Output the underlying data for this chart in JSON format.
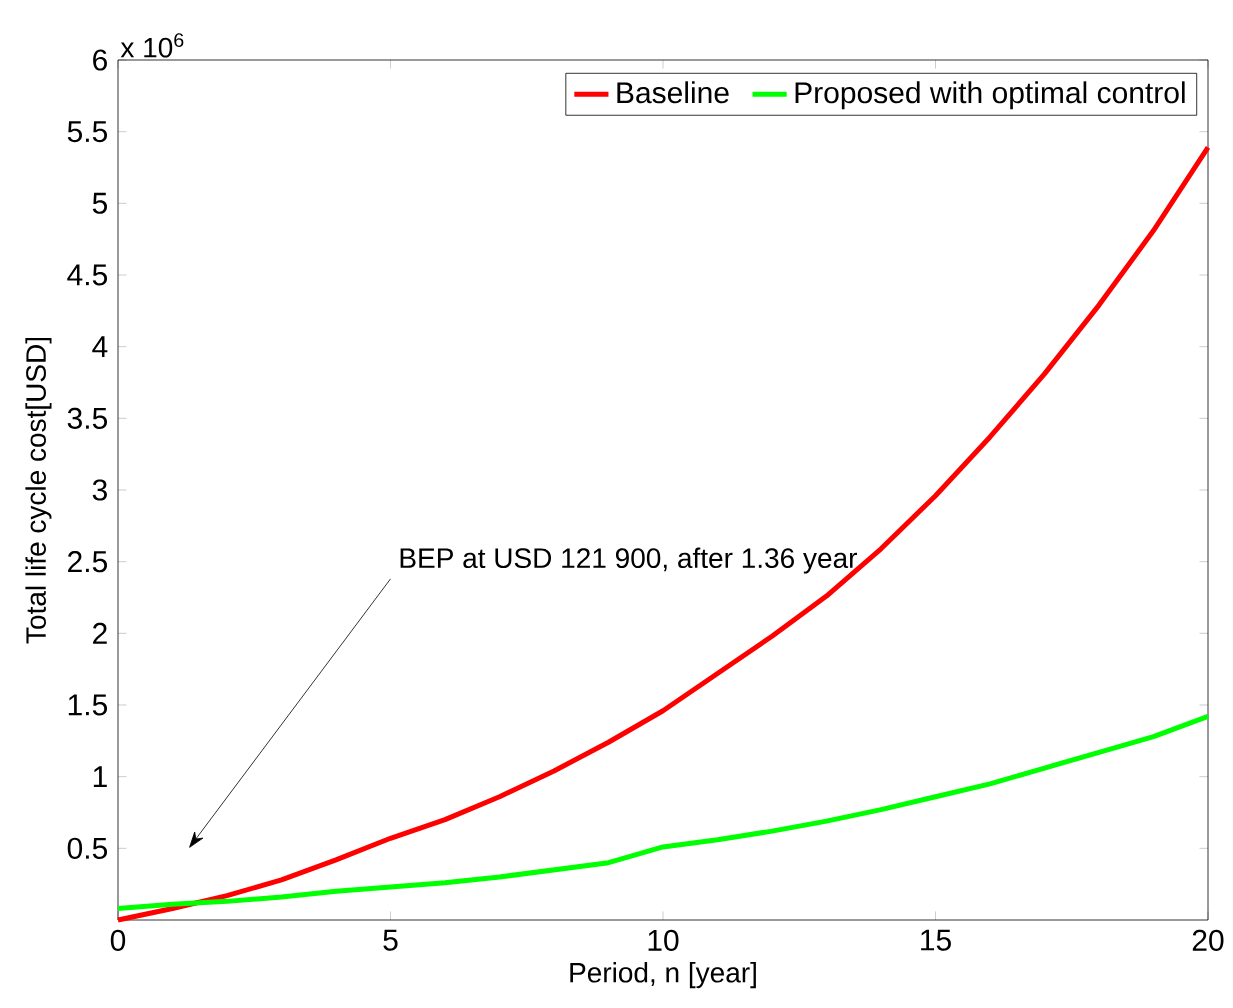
{
  "chart_data": {
    "type": "line",
    "xlabel": "Period, n [year]",
    "ylabel": "Total life cycle cost[USD]",
    "x": [
      0,
      1,
      2,
      3,
      4,
      5,
      6,
      7,
      8,
      9,
      10,
      11,
      12,
      13,
      14,
      15,
      16,
      17,
      18,
      19,
      20
    ],
    "series": [
      {
        "name": "Baseline",
        "color": "#ff0000",
        "values": [
          0,
          0.08,
          0.17,
          0.28,
          0.42,
          0.57,
          0.7,
          0.86,
          1.04,
          1.24,
          1.46,
          1.72,
          1.98,
          2.26,
          2.59,
          2.96,
          3.37,
          3.81,
          4.29,
          4.81,
          5.39
        ]
      },
      {
        "name": "Proposed with optimal control",
        "color": "#00ff00",
        "values": [
          0.08,
          0.11,
          0.13,
          0.16,
          0.2,
          0.23,
          0.26,
          0.3,
          0.35,
          0.4,
          0.51,
          0.56,
          0.62,
          0.69,
          0.77,
          0.86,
          0.95,
          1.06,
          1.17,
          1.28,
          1.42
        ]
      }
    ],
    "xlim": [
      0,
      20
    ],
    "ylim": [
      0,
      6
    ],
    "xticks": [
      0,
      5,
      10,
      15,
      20
    ],
    "yticks": [
      0.5,
      1,
      1.5,
      2,
      2.5,
      3,
      3.5,
      4,
      4.5,
      5,
      5.5,
      6
    ],
    "annotations": [
      "x 10$^{6}$",
      "BEP at USD 121 900, after 1.36 year"
    ],
    "legend": "top right",
    "grid": false,
    "marker": "none",
    "line_style": "solid"
  }
}
